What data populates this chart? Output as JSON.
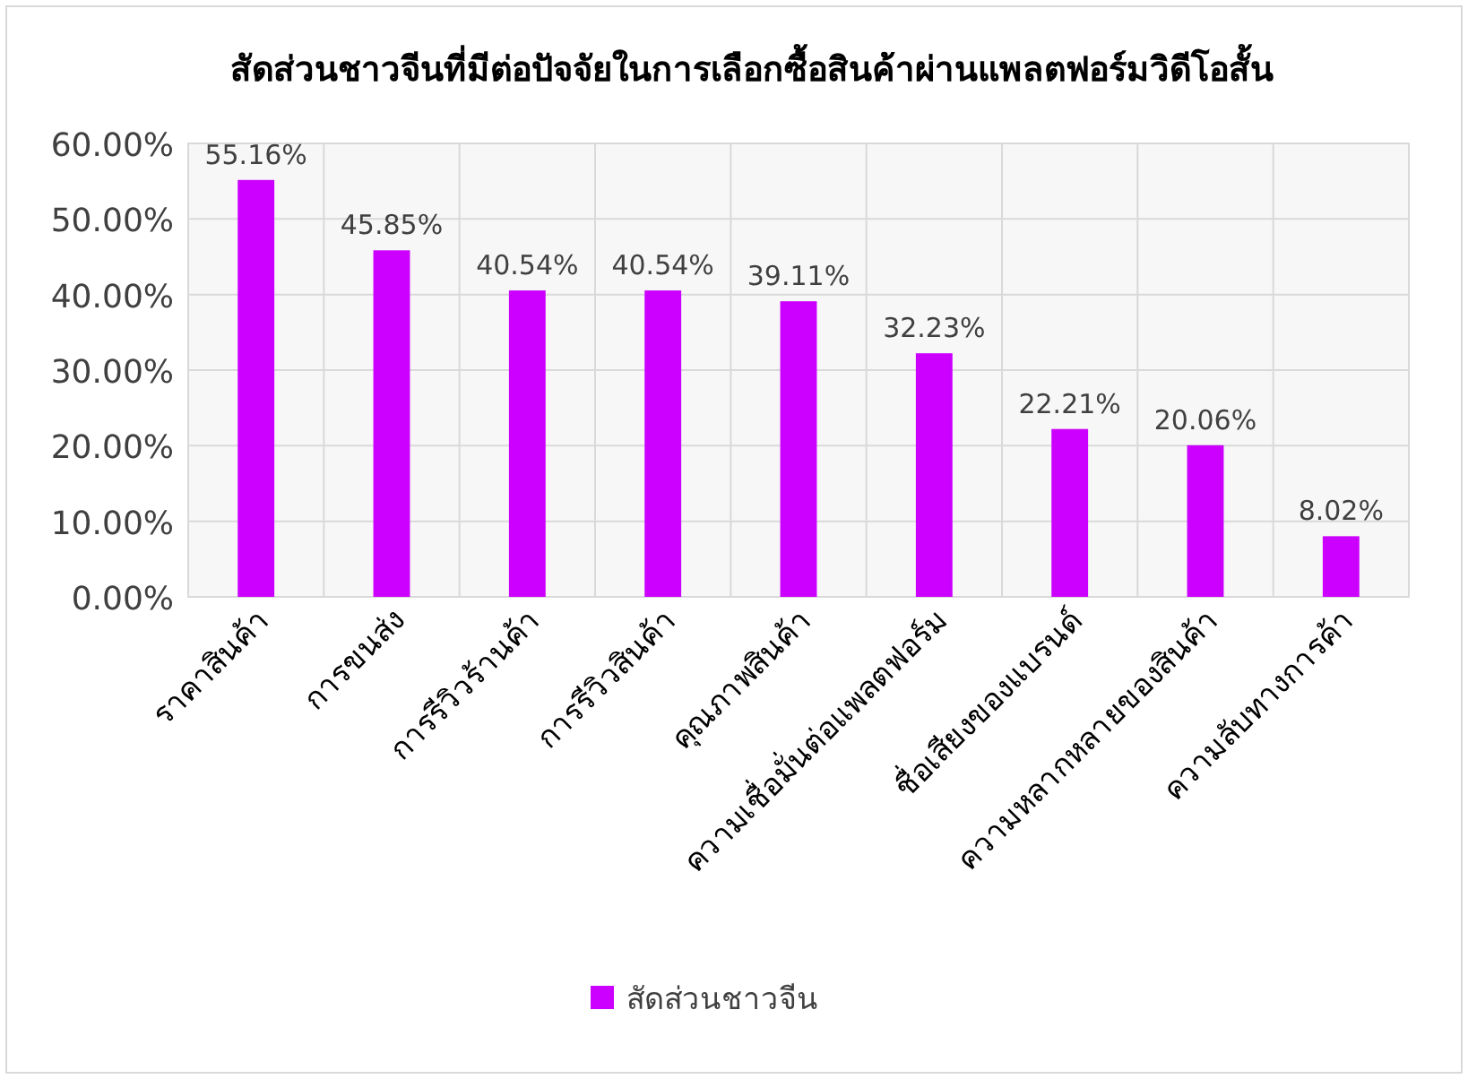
{
  "chart_data": {
    "type": "bar",
    "title": "สัดส่วนชาวจีนที่มีต่อปัจจัยในการเลือกซื้อสินค้าผ่านแพลตฟอร์มวิดีโอสั้น",
    "categories": [
      "ราคาสินค้า",
      "การขนส่ง",
      "การรีวิวร้านค้า",
      "การรีวิวสินค้า",
      "คุณภาพสินค้า",
      "ความเชื่อมั่นต่อแพลตฟอร์ม",
      "ชื่อเสียงของแบรนด์",
      "ความหลากหลายของสินค้า",
      "ความลับทางการค้า"
    ],
    "series": [
      {
        "name": "สัดส่วนชาวจีน",
        "color": "#cc00ff",
        "values": [
          55.16,
          45.85,
          40.54,
          40.54,
          39.11,
          32.23,
          22.21,
          20.06,
          8.02
        ],
        "value_labels": [
          "55.16%",
          "45.85%",
          "40.54%",
          "40.54%",
          "39.11%",
          "32.23%",
          "22.21%",
          "20.06%",
          "8.02%"
        ]
      }
    ],
    "ylim": [
      0,
      60
    ],
    "yticks": [
      {
        "value": 0,
        "label": "0.00%"
      },
      {
        "value": 10,
        "label": "10.00%"
      },
      {
        "value": 20,
        "label": "20.00%"
      },
      {
        "value": 30,
        "label": "30.00%"
      },
      {
        "value": 40,
        "label": "40.00%"
      },
      {
        "value": 50,
        "label": "50.00%"
      },
      {
        "value": 60,
        "label": "60.00%"
      }
    ],
    "grid": true,
    "legend": "bottom"
  }
}
